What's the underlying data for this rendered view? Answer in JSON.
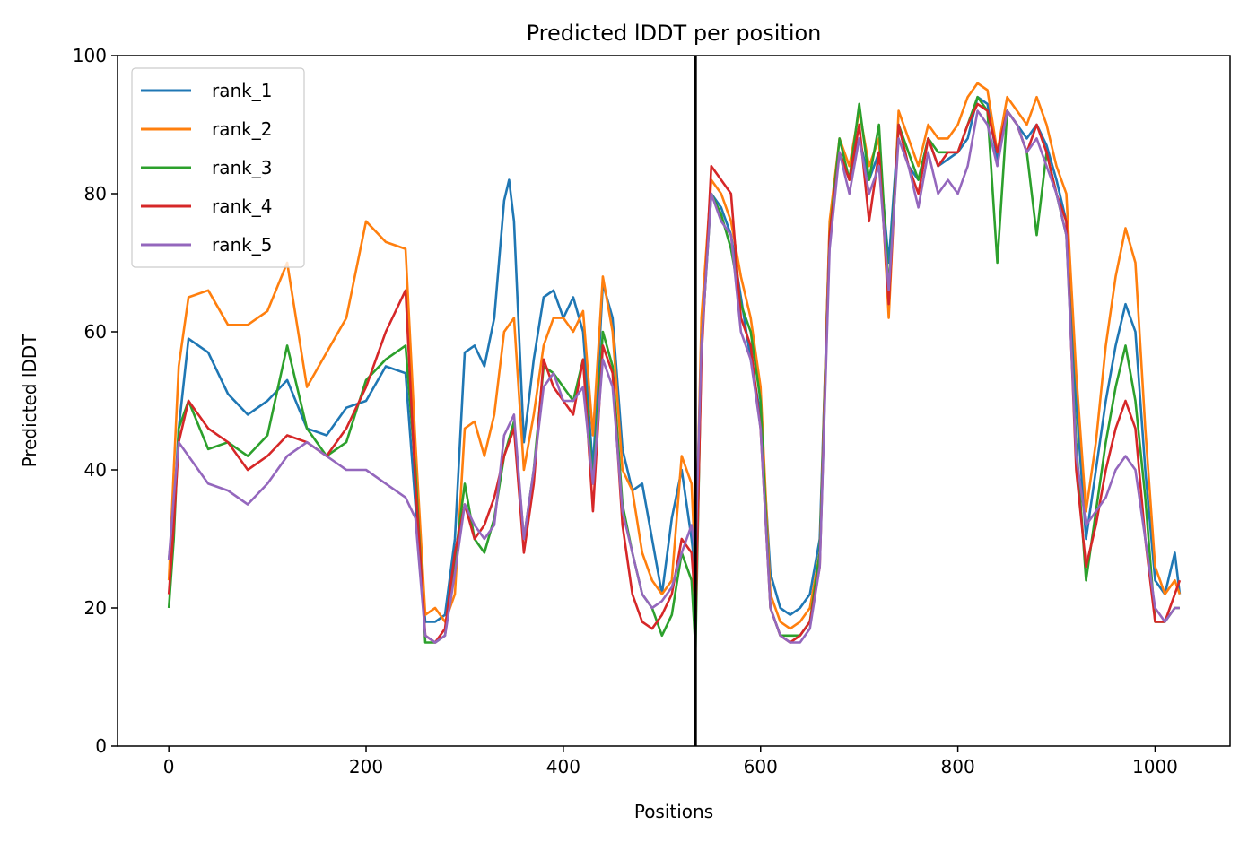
{
  "chart_data": {
    "type": "line",
    "title": "Predicted lDDT per position",
    "xlabel": "Positions",
    "ylabel": "Predicted lDDT",
    "xlim": [
      -52,
      1076
    ],
    "ylim": [
      0,
      100
    ],
    "xticks": [
      0,
      200,
      400,
      600,
      800,
      1000
    ],
    "yticks": [
      0,
      20,
      40,
      60,
      80,
      100
    ],
    "grid": false,
    "legend_position": "top-left",
    "vline": {
      "x": 534,
      "color": "#000000"
    },
    "series": [
      {
        "name": "rank_1",
        "color": "#1f77b4",
        "x": [
          0,
          5,
          10,
          20,
          40,
          60,
          80,
          100,
          120,
          140,
          160,
          180,
          200,
          220,
          240,
          250,
          260,
          270,
          280,
          290,
          300,
          310,
          320,
          330,
          340,
          345,
          350,
          360,
          370,
          380,
          390,
          400,
          410,
          420,
          430,
          440,
          450,
          460,
          470,
          480,
          490,
          500,
          510,
          520,
          530,
          534
        ],
        "y": [
          27,
          34,
          46,
          59,
          57,
          51,
          48,
          50,
          53,
          46,
          45,
          49,
          50,
          55,
          54,
          35,
          18,
          18,
          19,
          30,
          57,
          58,
          55,
          62,
          79,
          82,
          76,
          44,
          56,
          65,
          66,
          62,
          65,
          60,
          40,
          67,
          62,
          43,
          37,
          38,
          30,
          22,
          33,
          40,
          30,
          25
        ]
      },
      {
        "name": "rank_2",
        "color": "#ff7f0e",
        "x": [
          0,
          5,
          10,
          20,
          40,
          60,
          80,
          100,
          120,
          140,
          160,
          180,
          200,
          220,
          240,
          250,
          260,
          270,
          280,
          290,
          300,
          310,
          320,
          330,
          340,
          350,
          360,
          370,
          380,
          390,
          400,
          410,
          420,
          430,
          440,
          450,
          460,
          470,
          480,
          490,
          500,
          510,
          520,
          530,
          534
        ],
        "y": [
          24,
          40,
          55,
          65,
          66,
          61,
          61,
          63,
          70,
          52,
          57,
          62,
          76,
          73,
          72,
          44,
          19,
          20,
          18,
          22,
          46,
          47,
          42,
          48,
          60,
          62,
          40,
          48,
          58,
          62,
          62,
          60,
          63,
          45,
          68,
          60,
          40,
          37,
          28,
          24,
          22,
          24,
          42,
          38,
          25
        ]
      },
      {
        "name": "rank_3",
        "color": "#2ca02c",
        "x": [
          0,
          5,
          10,
          20,
          40,
          60,
          80,
          100,
          120,
          140,
          160,
          180,
          200,
          220,
          240,
          250,
          260,
          270,
          280,
          290,
          300,
          310,
          320,
          330,
          340,
          350,
          360,
          370,
          380,
          390,
          400,
          410,
          420,
          430,
          440,
          450,
          460,
          470,
          480,
          490,
          500,
          510,
          520,
          530,
          534
        ],
        "y": [
          20,
          30,
          46,
          50,
          43,
          44,
          42,
          45,
          58,
          46,
          42,
          44,
          53,
          56,
          58,
          40,
          15,
          15,
          16,
          27,
          38,
          30,
          28,
          33,
          42,
          47,
          30,
          40,
          55,
          54,
          52,
          50,
          56,
          38,
          60,
          55,
          35,
          28,
          22,
          20,
          16,
          19,
          28,
          24,
          14
        ]
      },
      {
        "name": "rank_4",
        "color": "#d62728",
        "x": [
          0,
          5,
          10,
          20,
          40,
          60,
          80,
          100,
          120,
          140,
          160,
          180,
          200,
          220,
          240,
          250,
          260,
          270,
          280,
          290,
          300,
          310,
          320,
          330,
          340,
          350,
          360,
          370,
          380,
          390,
          400,
          410,
          420,
          430,
          440,
          450,
          460,
          470,
          480,
          490,
          500,
          510,
          520,
          530,
          534
        ],
        "y": [
          22,
          32,
          44,
          50,
          46,
          44,
          40,
          42,
          45,
          44,
          42,
          46,
          52,
          60,
          66,
          38,
          16,
          15,
          17,
          28,
          35,
          30,
          32,
          36,
          42,
          46,
          28,
          38,
          56,
          52,
          50,
          48,
          56,
          34,
          58,
          54,
          32,
          22,
          18,
          17,
          19,
          22,
          30,
          28,
          20
        ]
      },
      {
        "name": "rank_5",
        "color": "#9467bd",
        "x": [
          0,
          5,
          10,
          20,
          40,
          60,
          80,
          100,
          120,
          140,
          160,
          180,
          200,
          220,
          240,
          250,
          260,
          270,
          280,
          290,
          300,
          310,
          320,
          330,
          340,
          350,
          360,
          370,
          380,
          390,
          400,
          410,
          420,
          430,
          440,
          450,
          460,
          470,
          480,
          490,
          500,
          510,
          520,
          530,
          534
        ],
        "y": [
          27,
          36,
          44,
          42,
          38,
          37,
          35,
          38,
          42,
          44,
          42,
          40,
          40,
          38,
          36,
          33,
          16,
          15,
          16,
          25,
          35,
          32,
          30,
          32,
          45,
          48,
          30,
          40,
          52,
          54,
          50,
          50,
          52,
          38,
          56,
          52,
          34,
          28,
          22,
          20,
          21,
          23,
          28,
          32,
          28
        ]
      },
      {
        "name": "rank_1",
        "color": "#1f77b4",
        "x": [
          534,
          540,
          550,
          560,
          570,
          580,
          590,
          600,
          610,
          620,
          630,
          640,
          650,
          660,
          670,
          680,
          690,
          700,
          710,
          720,
          730,
          740,
          750,
          760,
          770,
          780,
          790,
          800,
          810,
          820,
          830,
          840,
          850,
          860,
          870,
          880,
          890,
          900,
          910,
          920,
          930,
          940,
          950,
          960,
          970,
          980,
          990,
          1000,
          1010,
          1020,
          1025
        ],
        "y": [
          25,
          60,
          80,
          78,
          74,
          65,
          56,
          48,
          25,
          20,
          19,
          20,
          22,
          30,
          75,
          86,
          82,
          88,
          82,
          86,
          70,
          90,
          84,
          82,
          88,
          84,
          85,
          86,
          88,
          94,
          93,
          85,
          92,
          90,
          88,
          90,
          87,
          82,
          76,
          50,
          30,
          40,
          50,
          58,
          64,
          60,
          40,
          24,
          22,
          28,
          22
        ]
      },
      {
        "name": "rank_2",
        "color": "#ff7f0e",
        "x": [
          534,
          540,
          550,
          560,
          570,
          580,
          590,
          600,
          610,
          620,
          630,
          640,
          650,
          660,
          670,
          680,
          690,
          700,
          710,
          720,
          730,
          740,
          750,
          760,
          770,
          780,
          790,
          800,
          810,
          820,
          830,
          840,
          850,
          860,
          870,
          880,
          890,
          900,
          910,
          920,
          930,
          940,
          950,
          960,
          970,
          980,
          990,
          1000,
          1010,
          1020,
          1025
        ],
        "y": [
          25,
          62,
          82,
          80,
          76,
          68,
          62,
          52,
          22,
          18,
          17,
          18,
          20,
          28,
          76,
          88,
          84,
          92,
          84,
          88,
          62,
          92,
          88,
          84,
          90,
          88,
          88,
          90,
          94,
          96,
          95,
          86,
          94,
          92,
          90,
          94,
          90,
          84,
          80,
          54,
          34,
          44,
          58,
          68,
          75,
          70,
          46,
          26,
          22,
          24,
          22
        ]
      },
      {
        "name": "rank_3",
        "color": "#2ca02c",
        "x": [
          534,
          540,
          550,
          560,
          570,
          580,
          590,
          600,
          610,
          620,
          630,
          640,
          650,
          660,
          670,
          680,
          690,
          700,
          710,
          720,
          730,
          740,
          750,
          760,
          770,
          780,
          790,
          800,
          810,
          820,
          830,
          840,
          850,
          860,
          870,
          880,
          890,
          900,
          910,
          920,
          930,
          940,
          950,
          960,
          970,
          980,
          990,
          1000,
          1010,
          1020,
          1025
        ],
        "y": [
          14,
          58,
          80,
          77,
          72,
          64,
          60,
          50,
          20,
          16,
          16,
          16,
          18,
          28,
          74,
          88,
          82,
          93,
          82,
          90,
          66,
          90,
          86,
          82,
          88,
          86,
          86,
          86,
          90,
          94,
          92,
          70,
          92,
          90,
          86,
          74,
          86,
          80,
          74,
          44,
          24,
          34,
          44,
          52,
          58,
          50,
          36,
          18,
          18,
          20,
          20
        ]
      },
      {
        "name": "rank_4",
        "color": "#d62728",
        "x": [
          534,
          540,
          550,
          560,
          570,
          580,
          590,
          600,
          610,
          620,
          630,
          640,
          650,
          660,
          670,
          680,
          690,
          700,
          710,
          720,
          730,
          740,
          750,
          760,
          770,
          780,
          790,
          800,
          810,
          820,
          830,
          840,
          850,
          860,
          870,
          880,
          890,
          900,
          910,
          920,
          930,
          940,
          950,
          960,
          970,
          980,
          990,
          1000,
          1010,
          1020,
          1025
        ],
        "y": [
          18,
          56,
          84,
          82,
          80,
          62,
          58,
          46,
          20,
          16,
          15,
          16,
          18,
          26,
          74,
          86,
          82,
          90,
          76,
          86,
          64,
          90,
          84,
          80,
          88,
          84,
          86,
          86,
          90,
          93,
          92,
          86,
          92,
          90,
          86,
          90,
          86,
          80,
          76,
          40,
          26,
          32,
          40,
          46,
          50,
          46,
          30,
          18,
          18,
          22,
          24
        ]
      },
      {
        "name": "rank_5",
        "color": "#9467bd",
        "x": [
          534,
          540,
          550,
          560,
          570,
          580,
          590,
          600,
          610,
          620,
          630,
          640,
          650,
          660,
          670,
          680,
          690,
          700,
          710,
          720,
          730,
          740,
          750,
          760,
          770,
          780,
          790,
          800,
          810,
          820,
          830,
          840,
          850,
          860,
          870,
          880,
          890,
          900,
          910,
          920,
          930,
          940,
          950,
          960,
          970,
          980,
          990,
          1000,
          1010,
          1020,
          1025
        ],
        "y": [
          28,
          58,
          80,
          76,
          74,
          60,
          56,
          46,
          20,
          16,
          15,
          15,
          17,
          26,
          72,
          86,
          80,
          88,
          80,
          84,
          66,
          88,
          84,
          78,
          86,
          80,
          82,
          80,
          84,
          92,
          90,
          84,
          92,
          90,
          86,
          88,
          84,
          80,
          74,
          42,
          32,
          34,
          36,
          40,
          42,
          40,
          30,
          20,
          18,
          20,
          20
        ]
      }
    ],
    "legend": [
      "rank_1",
      "rank_2",
      "rank_3",
      "rank_4",
      "rank_5"
    ]
  }
}
